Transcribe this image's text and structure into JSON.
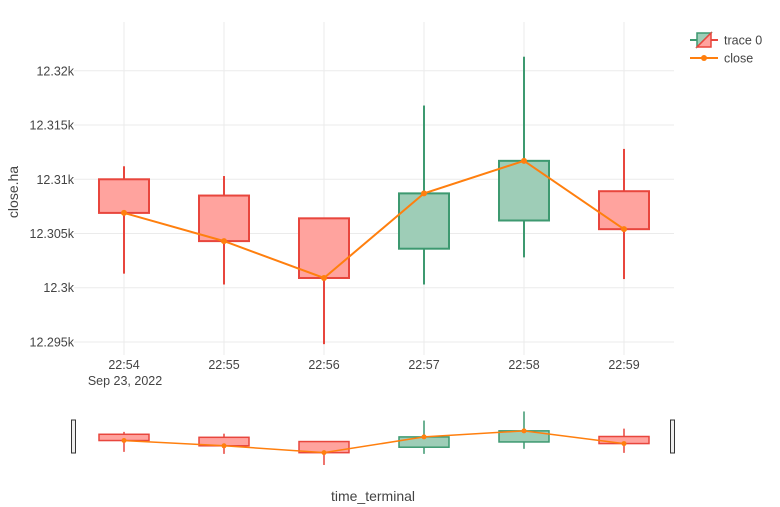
{
  "chart_data": {
    "type": "candlestick",
    "x_ticks": [
      "22:54",
      "22:55",
      "22:56",
      "22:57",
      "22:58",
      "22:59"
    ],
    "x_date_label": "Sep 23, 2022",
    "xlabel": "time_terminal",
    "ylabel": "close.ha",
    "y_ticks": [
      12295,
      12300,
      12305,
      12310,
      12315,
      12320
    ],
    "y_tick_labels": [
      "12.295k",
      "12.3k",
      "12.305k",
      "12.31k",
      "12.315k",
      "12.32k"
    ],
    "ylim": [
      12293.8,
      12324.5
    ],
    "grid": true,
    "legend_position": "top-right",
    "colors": {
      "increasing_line": "#3d9970",
      "increasing_fill": "#9ecdb7",
      "decreasing_line": "#e8463d",
      "decreasing_fill": "#ffa39e",
      "line": "#ff7f0e",
      "grid": "#ebebeb"
    },
    "series": [
      {
        "name": "trace 0",
        "kind": "candlestick",
        "candles": [
          {
            "time": "22:54",
            "open": 12310.0,
            "high": 12311.2,
            "low": 12301.3,
            "close": 12306.9
          },
          {
            "time": "22:55",
            "open": 12308.5,
            "high": 12310.3,
            "low": 12300.3,
            "close": 12304.3
          },
          {
            "time": "22:56",
            "open": 12306.4,
            "high": 12306.4,
            "low": 12294.8,
            "close": 12300.9
          },
          {
            "time": "22:57",
            "open": 12303.6,
            "high": 12316.8,
            "low": 12300.3,
            "close": 12308.7
          },
          {
            "time": "22:58",
            "open": 12306.2,
            "high": 12321.3,
            "low": 12302.8,
            "close": 12311.7
          },
          {
            "time": "22:59",
            "open": 12308.9,
            "high": 12312.8,
            "low": 12300.8,
            "close": 12305.4
          }
        ]
      },
      {
        "name": "close",
        "kind": "line",
        "values": [
          12306.9,
          12304.3,
          12300.9,
          12308.7,
          12311.7,
          12305.4
        ]
      }
    ]
  }
}
